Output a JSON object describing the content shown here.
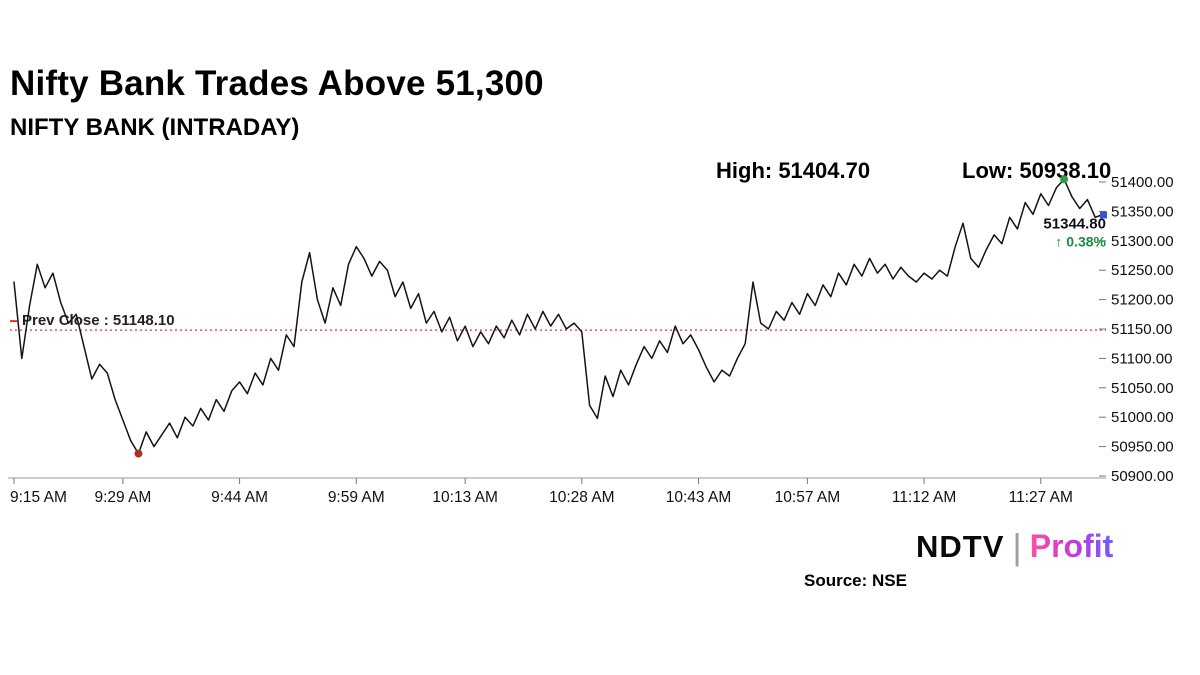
{
  "header": {
    "title": "Nifty Bank Trades Above 51,300",
    "subtitle": "NIFTY BANK (INTRADAY)"
  },
  "annotations": {
    "high_label": "High: 51404.70",
    "low_label": "Low: 50938.10",
    "prev_close_label": "Prev Close : 51148.10",
    "last_price_label": "51344.80",
    "change_label": "↑ 0.38%"
  },
  "footer": {
    "source": "Source: NSE",
    "logo": {
      "ndtv": "NDTV",
      "divider": "|",
      "profit": "Profit"
    }
  },
  "chart_data": {
    "type": "line",
    "title": "NIFTY BANK (INTRADAY)",
    "ylim": [
      50900,
      51400
    ],
    "y_ticks": [
      51400,
      51350,
      51300,
      51250,
      51200,
      51150,
      51100,
      51050,
      51000,
      50950,
      50900
    ],
    "x_ticks": [
      {
        "label": "9:15 AM",
        "i": 0
      },
      {
        "label": "9:29 AM",
        "i": 14
      },
      {
        "label": "9:44 AM",
        "i": 29
      },
      {
        "label": "9:59 AM",
        "i": 44
      },
      {
        "label": "10:13 AM",
        "i": 58
      },
      {
        "label": "10:28 AM",
        "i": 73
      },
      {
        "label": "10:43 AM",
        "i": 88
      },
      {
        "label": "10:57 AM",
        "i": 102
      },
      {
        "label": "11:12 AM",
        "i": 117
      },
      {
        "label": "11:27 AM",
        "i": 132
      }
    ],
    "prev_close": 51148.1,
    "high": 51404.7,
    "low": 50938.1,
    "last": 51344.8,
    "change_pct": 0.38,
    "high_index": 135,
    "low_index": 16,
    "values": [
      51230,
      51100,
      51190,
      51260,
      51220,
      51245,
      51195,
      51160,
      51175,
      51120,
      51065,
      51090,
      51075,
      51030,
      50995,
      50960,
      50938.1,
      50975,
      50950,
      50970,
      50990,
      50965,
      51000,
      50985,
      51015,
      50995,
      51030,
      51010,
      51045,
      51060,
      51040,
      51075,
      51055,
      51100,
      51080,
      51140,
      51120,
      51230,
      51280,
      51200,
      51160,
      51220,
      51190,
      51260,
      51290,
      51270,
      51240,
      51265,
      51250,
      51205,
      51230,
      51185,
      51210,
      51160,
      51180,
      51145,
      51170,
      51130,
      51155,
      51120,
      51145,
      51125,
      51155,
      51135,
      51165,
      51140,
      51175,
      51150,
      51180,
      51155,
      51175,
      51150,
      51160,
      51145,
      51020,
      50998,
      51070,
      51035,
      51080,
      51055,
      51090,
      51120,
      51100,
      51130,
      51110,
      51155,
      51125,
      51140,
      51115,
      51085,
      51060,
      51080,
      51070,
      51100,
      51125,
      51230,
      51160,
      51150,
      51180,
      51165,
      51195,
      51175,
      51210,
      51190,
      51225,
      51205,
      51245,
      51225,
      51260,
      51240,
      51270,
      51245,
      51260,
      51235,
      51255,
      51240,
      51230,
      51245,
      51235,
      51250,
      51240,
      51290,
      51330,
      51270,
      51255,
      51285,
      51310,
      51295,
      51340,
      51320,
      51365,
      51345,
      51380,
      51360,
      51390,
      51404.7,
      51375,
      51355,
      51370,
      51340,
      51344.8
    ],
    "colors": {
      "line": "#141414",
      "prev_close": "#e03131",
      "high_marker": "#2e9e44",
      "low_marker": "#a93226",
      "last_marker": "#3a53c9",
      "change": "#1a8a3c"
    }
  }
}
